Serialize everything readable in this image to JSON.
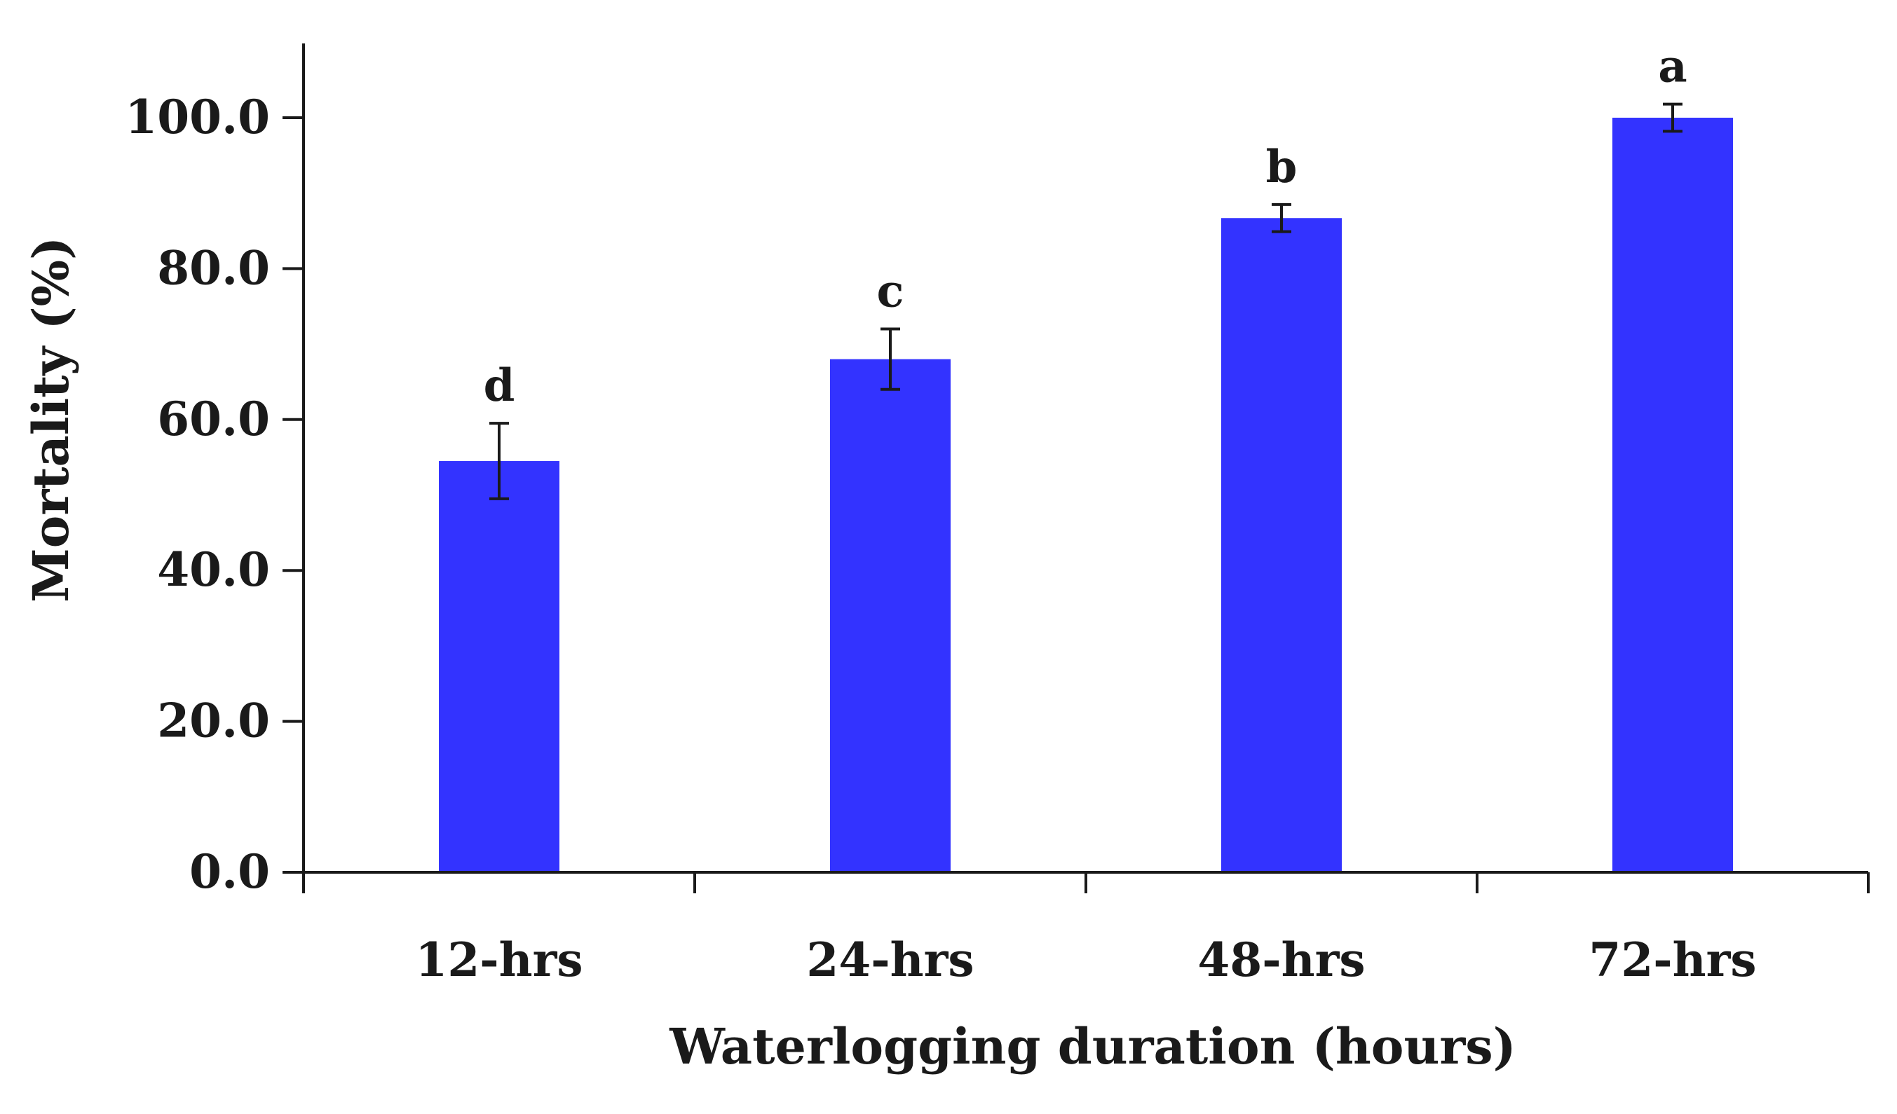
{
  "chart_data": {
    "type": "bar",
    "title": "",
    "xlabel": "Waterlogging duration (hours)",
    "ylabel": "Mortality (%)",
    "categories": [
      "12-hrs",
      "24-hrs",
      "48-hrs",
      "72-hrs"
    ],
    "values": [
      54.5,
      68.0,
      86.7,
      100.0
    ],
    "errors": [
      5.0,
      4.0,
      1.8,
      1.8
    ],
    "significance_letters": [
      "d",
      "c",
      "b",
      "a"
    ],
    "yticks": [
      0,
      20,
      40,
      60,
      80,
      100
    ],
    "ytick_labels": [
      "0.0",
      "20.0",
      "40.0",
      "60.0",
      "80.0",
      "100.0"
    ],
    "ylim": [
      0,
      110
    ],
    "bar_color": "#3333ff",
    "axis_color": "#1a1a1a",
    "grid": false,
    "legend": "none"
  }
}
